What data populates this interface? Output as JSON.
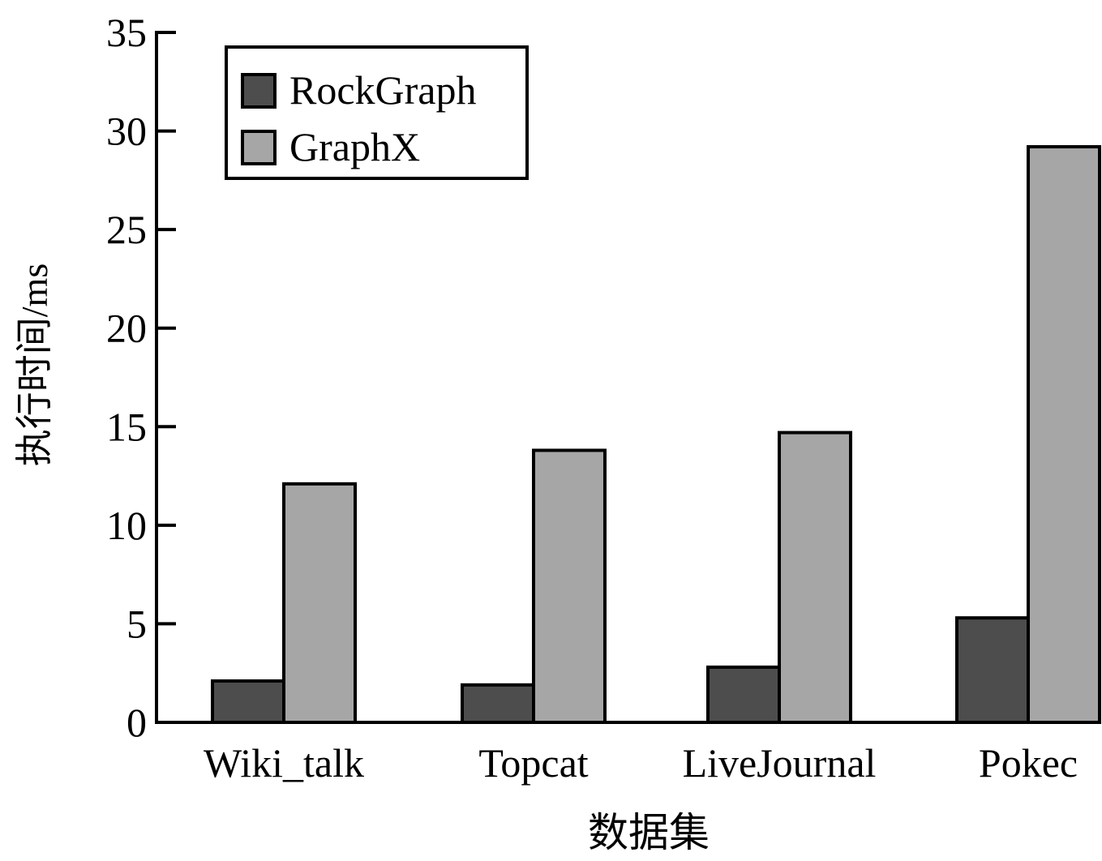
{
  "chart_data": {
    "type": "bar",
    "title": "",
    "xlabel": "数据集",
    "ylabel": "执行时间/ms",
    "categories": [
      "Wiki_talk",
      "Topcat",
      "LiveJournal",
      "Pokec"
    ],
    "series": [
      {
        "name": "RockGraph",
        "values": [
          2.1,
          1.9,
          2.8,
          5.3
        ],
        "color": "#4d4d4d"
      },
      {
        "name": "GraphX",
        "values": [
          12.1,
          13.8,
          14.7,
          29.2
        ],
        "color": "#a6a6a6"
      }
    ],
    "ylim": [
      0,
      35
    ],
    "yticks": [
      0,
      5,
      10,
      15,
      20,
      25,
      30,
      35
    ],
    "grid": false,
    "legend_position": "top-left"
  }
}
